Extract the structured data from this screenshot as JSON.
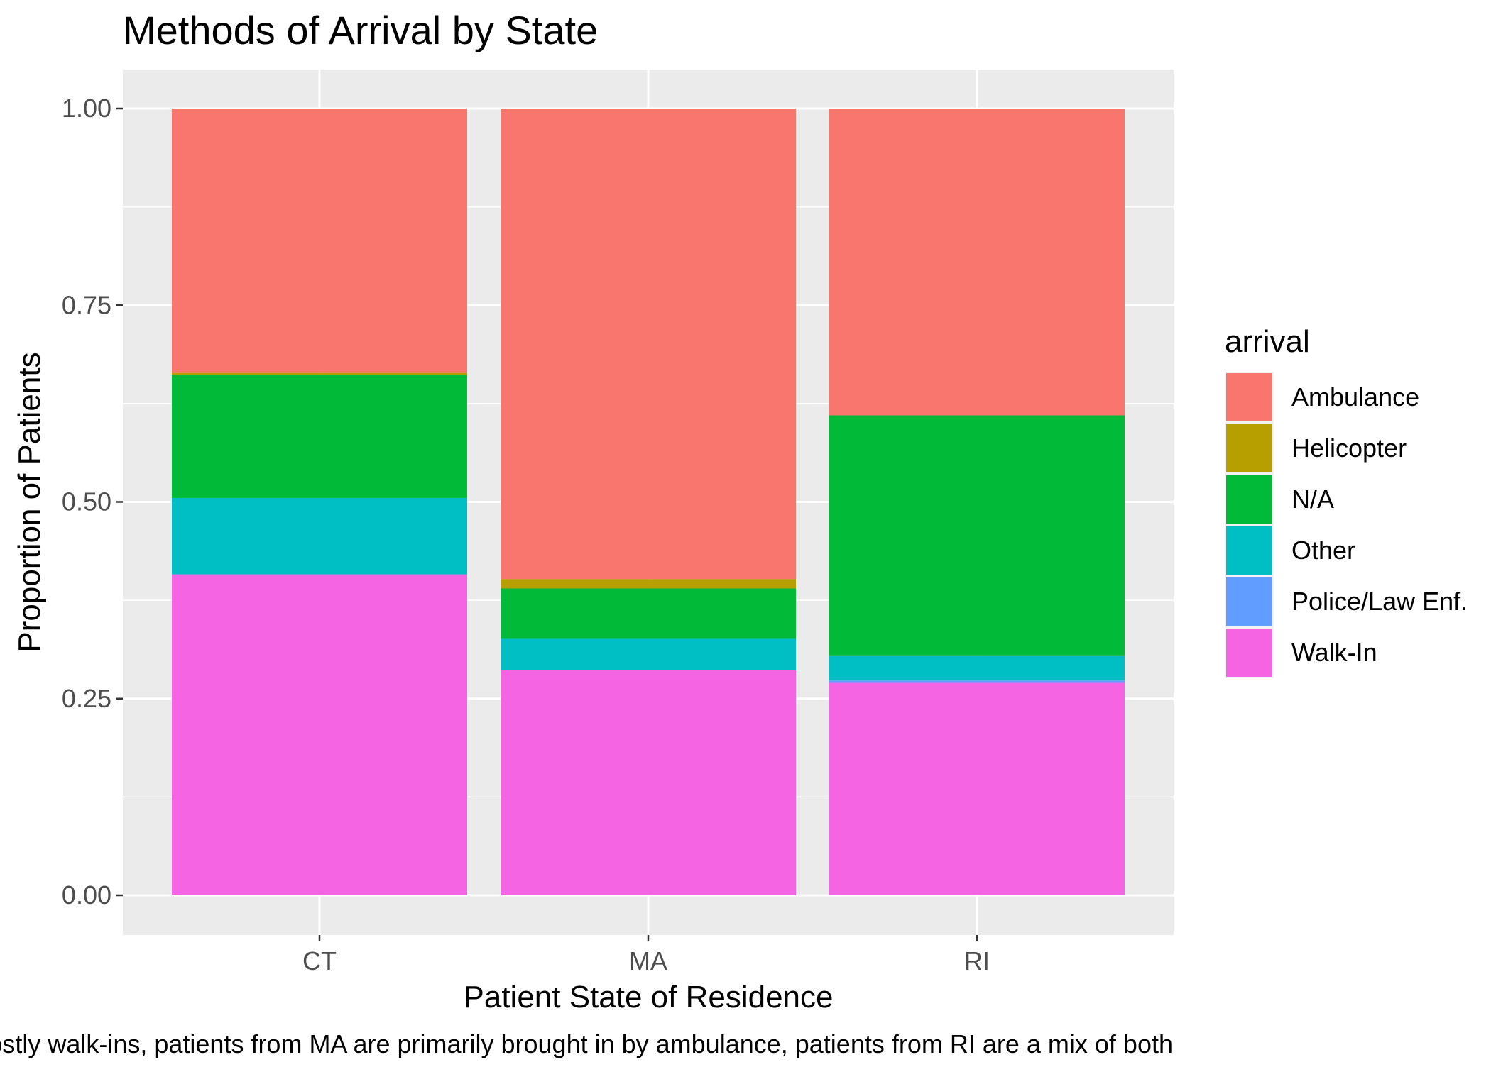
{
  "chart_data": {
    "type": "bar",
    "stacked": true,
    "title": "Methods of Arrival by State",
    "xlabel": "Patient State of Residence",
    "ylabel": "Proportion of Patients",
    "caption": "Patients from CT are mostly walk-ins, patients from MA are primarily brought in by ambulance, patients from RI are a mix of both",
    "categories": [
      "CT",
      "MA",
      "RI"
    ],
    "ylim": [
      0,
      1
    ],
    "yticks": [
      "0.00",
      "0.25",
      "0.50",
      "0.75",
      "1.00"
    ],
    "ytick_values": [
      0,
      0.25,
      0.5,
      0.75,
      1.0
    ],
    "grid": true,
    "legend": {
      "title": "arrival",
      "position": "right"
    },
    "series": [
      {
        "name": "Walk-In",
        "color": "#F564E3",
        "values": [
          0.408,
          0.286,
          0.27
        ]
      },
      {
        "name": "Police/Law Enf.",
        "color": "#619CFF",
        "values": [
          0.0,
          0.0,
          0.003
        ]
      },
      {
        "name": "Other",
        "color": "#00BFC4",
        "values": [
          0.097,
          0.04,
          0.032
        ]
      },
      {
        "name": "N/A",
        "color": "#00BA38",
        "values": [
          0.156,
          0.064,
          0.305
        ]
      },
      {
        "name": "Helicopter",
        "color": "#B79F00",
        "values": [
          0.003,
          0.012,
          0.0
        ]
      },
      {
        "name": "Ambulance",
        "color": "#F8766D",
        "values": [
          0.336,
          0.598,
          0.39
        ]
      }
    ],
    "legend_order": [
      "Ambulance",
      "Helicopter",
      "N/A",
      "Other",
      "Police/Law Enf.",
      "Walk-In"
    ]
  }
}
